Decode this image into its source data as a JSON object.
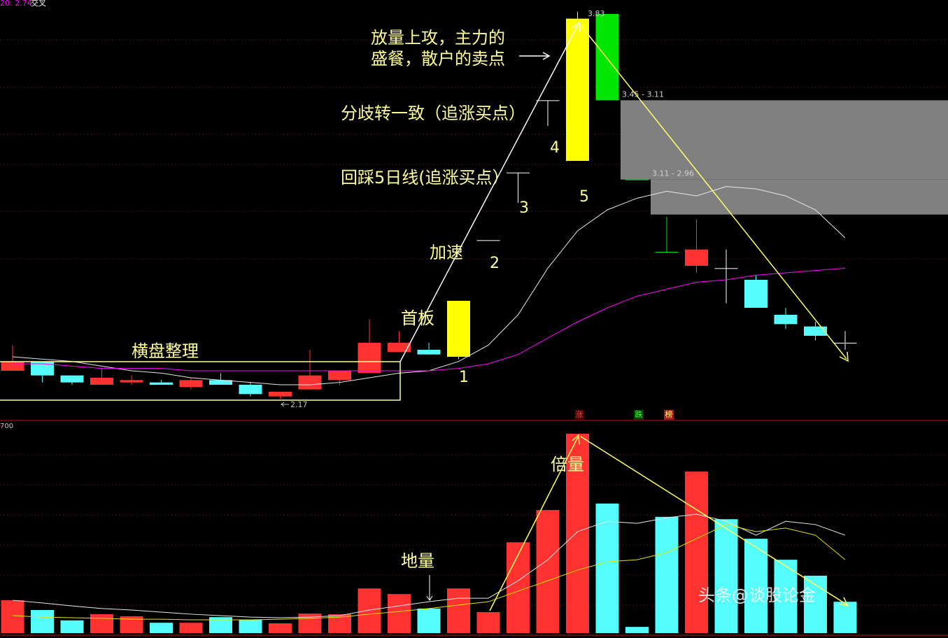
{
  "header": {
    "indicator": "20: 2.74",
    "signal": "交叉"
  },
  "chart_data": [
    {
      "type": "candlestick",
      "open": [
        2.29,
        2.33,
        2.27,
        2.23,
        2.24,
        2.24,
        2.22,
        2.25,
        2.23,
        2.18,
        2.21,
        2.25,
        2.28,
        2.37,
        2.38,
        2.35,
        2.85,
        3.14,
        3.45,
        3.19,
        3.82,
        3.11,
        2.8,
        2.74,
        2.73,
        2.68,
        2.53,
        2.48,
        2.41
      ],
      "high": [
        2.4,
        2.33,
        2.27,
        2.3,
        2.27,
        2.25,
        2.26,
        2.28,
        2.24,
        2.2,
        2.38,
        2.29,
        2.51,
        2.46,
        2.41,
        2.59,
        2.85,
        3.14,
        3.45,
        3.83,
        3.82,
        3.11,
        2.95,
        2.94,
        2.81,
        2.7,
        2.56,
        2.5,
        2.46
      ],
      "low": [
        2.29,
        2.24,
        2.23,
        2.23,
        2.23,
        2.23,
        2.21,
        2.23,
        2.18,
        2.17,
        2.21,
        2.23,
        2.28,
        2.37,
        2.36,
        2.34,
        2.85,
        3.01,
        3.34,
        3.19,
        3.45,
        3.11,
        2.8,
        2.71,
        2.58,
        2.56,
        2.47,
        2.42,
        2.38
      ],
      "close": [
        2.33,
        2.27,
        2.24,
        2.26,
        2.25,
        2.23,
        2.25,
        2.23,
        2.19,
        2.2,
        2.27,
        2.29,
        2.41,
        2.41,
        2.36,
        2.59,
        2.85,
        3.14,
        3.45,
        3.8,
        3.45,
        3.11,
        2.8,
        2.81,
        2.73,
        2.56,
        2.49,
        2.44,
        2.41
      ],
      "colors": [
        "#ff3232",
        "#54fcfc",
        "#54fcfc",
        "#ff3232",
        "#ff3232",
        "#54fcfc",
        "#ff3232",
        "#54fcfc",
        "#54fcfc",
        "#ff3232",
        "#ff3232",
        "#ff3232",
        "#ff3232",
        "#ff3232",
        "#54fcfc",
        "#ffff00",
        "#ffffff",
        "#ffffff",
        "#ffffff",
        "#ffff00",
        "#00e600",
        "#00e600",
        "#00e600",
        "#ff3232",
        "#ffffff",
        "#54fcfc",
        "#54fcfc",
        "#54fcfc",
        "#ffffff"
      ],
      "ylim": [
        2.08,
        3.88
      ],
      "lines": [
        {
          "color": "#e8e8e8",
          "values": [
            2.35,
            2.34,
            2.33,
            2.31,
            2.29,
            2.28,
            2.26,
            2.25,
            2.24,
            2.23,
            2.23,
            2.24,
            2.26,
            2.28,
            2.29,
            2.33,
            2.4,
            2.53,
            2.73,
            2.89,
            2.98,
            3.03,
            3.06,
            3.04,
            3.08,
            3.07,
            3.04,
            2.98,
            2.86
          ]
        },
        {
          "color": "#ff00ff",
          "values": [
            2.32,
            2.32,
            2.31,
            2.3,
            2.3,
            2.3,
            2.29,
            2.29,
            2.29,
            2.29,
            2.29,
            2.29,
            2.29,
            2.29,
            2.29,
            2.3,
            2.32,
            2.36,
            2.43,
            2.5,
            2.56,
            2.61,
            2.64,
            2.67,
            2.68,
            2.7,
            2.71,
            2.72,
            2.73
          ]
        }
      ],
      "max_label": 3.83,
      "min_label": 2.17,
      "zones": [
        {
          "from": 3.45,
          "to": 3.11,
          "label": "3.45 - 3.11"
        },
        {
          "from": 3.11,
          "to": 2.96,
          "label": "3.11 - 2.96"
        }
      ],
      "annotations": [
        "放量上攻，主力的",
        "盛餐，散户的卖点",
        "分歧转一致（追涨买点）",
        "回踩5日线(追涨买点）",
        "加速",
        "首板",
        "横盘整理"
      ],
      "wave_labels": [
        "1",
        "2",
        "3",
        "4",
        "5"
      ]
    },
    {
      "type": "bar",
      "values": [
        111,
        78,
        43,
        64,
        57,
        35,
        35,
        54,
        45,
        33,
        66,
        64,
        151,
        132,
        83,
        151,
        71,
        307,
        416,
        674,
        438,
        21,
        393,
        546,
        385,
        319,
        248,
        194,
        106
      ],
      "colors": [
        "#ff3232",
        "#54fcfc",
        "#54fcfc",
        "#ff3232",
        "#ff3232",
        "#54fcfc",
        "#ff3232",
        "#54fcfc",
        "#54fcfc",
        "#ff3232",
        "#ff3232",
        "#ff3232",
        "#ff3232",
        "#ff3232",
        "#54fcfc",
        "#ff3232",
        "#ff3232",
        "#ff3232",
        "#ff3232",
        "#ff3232",
        "#54fcfc",
        "#54fcfc",
        "#54fcfc",
        "#ff3232",
        "#54fcfc",
        "#54fcfc",
        "#54fcfc",
        "#54fcfc",
        "#54fcfc"
      ],
      "ylim": [
        0,
        700
      ],
      "yticks": [
        700
      ],
      "lines": [
        {
          "color": "#e8e8e8",
          "values": [
            111,
            102,
            92,
            83,
            78,
            71,
            64,
            59,
            54,
            52,
            54,
            59,
            78,
            92,
            106,
            118,
            118,
            177,
            248,
            343,
            378,
            371,
            390,
            402,
            378,
            331,
            378,
            367,
            331
          ]
        },
        {
          "color": "#e6e600",
          "values": [
            59,
            54,
            52,
            50,
            47,
            47,
            45,
            45,
            45,
            47,
            50,
            54,
            64,
            73,
            83,
            95,
            106,
            142,
            177,
            213,
            241,
            248,
            272,
            319,
            367,
            343,
            355,
            331,
            248
          ]
        }
      ],
      "markers": [
        "涨",
        "跌",
        "榜"
      ],
      "annotations": [
        "倍量",
        "地量"
      ],
      "watermark": "头条@谈股论金"
    }
  ]
}
